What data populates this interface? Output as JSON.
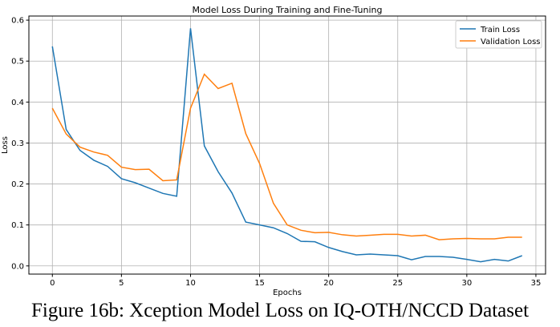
{
  "chart_data": {
    "type": "line",
    "title": "Model Loss During Training and Fine-Tuning",
    "xlabel": "Epochs",
    "ylabel": "Loss",
    "xlim": [
      -1.7,
      35.7
    ],
    "ylim": [
      -0.02,
      0.61
    ],
    "xticks": [
      0,
      5,
      10,
      15,
      20,
      25,
      30,
      35
    ],
    "yticks": [
      0.0,
      0.1,
      0.2,
      0.3,
      0.4,
      0.5,
      0.6
    ],
    "grid": true,
    "legend_position": "top-right",
    "x": [
      0,
      1,
      2,
      3,
      4,
      5,
      6,
      7,
      8,
      9,
      10,
      11,
      12,
      13,
      14,
      15,
      16,
      17,
      18,
      19,
      20,
      21,
      22,
      23,
      24,
      25,
      26,
      27,
      28,
      29,
      30,
      31,
      32,
      33,
      34
    ],
    "series": [
      {
        "name": "Train Loss",
        "color": "#1f77b4",
        "values": [
          0.536,
          0.333,
          0.282,
          0.258,
          0.243,
          0.213,
          0.203,
          0.19,
          0.177,
          0.17,
          0.58,
          0.293,
          0.23,
          0.178,
          0.107,
          0.1,
          0.093,
          0.079,
          0.06,
          0.059,
          0.045,
          0.035,
          0.027,
          0.029,
          0.027,
          0.025,
          0.015,
          0.023,
          0.023,
          0.021,
          0.016,
          0.01,
          0.016,
          0.012,
          0.025
        ]
      },
      {
        "name": "Validation Loss",
        "color": "#ff7f0e",
        "values": [
          0.385,
          0.322,
          0.29,
          0.278,
          0.27,
          0.241,
          0.235,
          0.236,
          0.208,
          0.21,
          0.385,
          0.468,
          0.433,
          0.446,
          0.323,
          0.25,
          0.153,
          0.1,
          0.087,
          0.081,
          0.082,
          0.076,
          0.073,
          0.075,
          0.077,
          0.077,
          0.073,
          0.075,
          0.064,
          0.066,
          0.067,
          0.066,
          0.066,
          0.07,
          0.07
        ]
      }
    ]
  },
  "caption": "Figure 16b: Xception Model Loss on IQ-OTH/NCCD Dataset"
}
